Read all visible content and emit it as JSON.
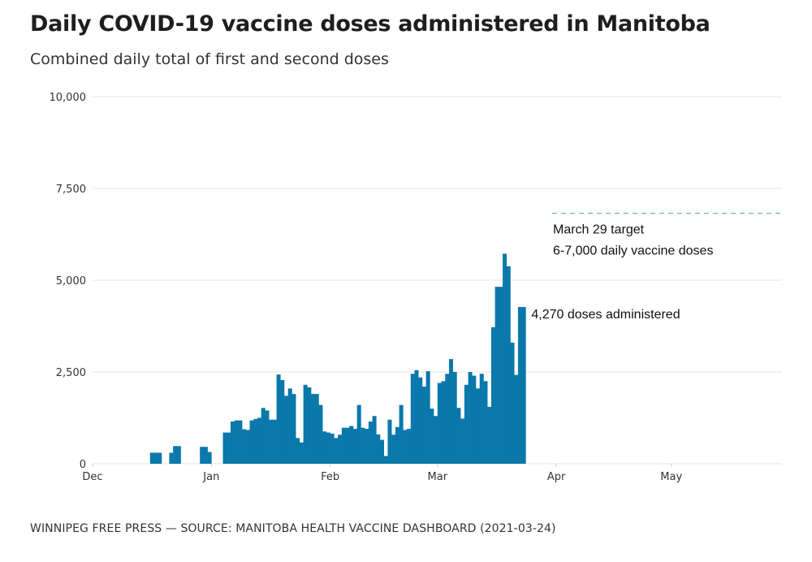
{
  "header": {
    "title": "Daily COVID-19 vaccine doses administered in Manitoba",
    "subtitle": "Combined daily total of first and second doses"
  },
  "footer": {
    "source": "WINNIPEG FREE PRESS — SOURCE: MANITOBA HEALTH VACCINE DASHBOARD (2021-03-24)"
  },
  "colors": {
    "bar": "#0a78aa",
    "grid": "#e6e6e6",
    "target_line": "#6fb3d2"
  },
  "chart_data": {
    "type": "bar",
    "title": "Daily COVID-19 vaccine doses administered in Manitoba",
    "subtitle": "Combined daily total of first and second doses",
    "xlabel": "",
    "ylabel": "",
    "ylim": [
      0,
      10000
    ],
    "xlim": [
      "2020-12-01",
      "2021-05-31"
    ],
    "grid": true,
    "y_ticks": [
      {
        "value": 0,
        "label": "0"
      },
      {
        "value": 2500,
        "label": "2,500"
      },
      {
        "value": 5000,
        "label": "5,000"
      },
      {
        "value": 7500,
        "label": "7,500"
      },
      {
        "value": 10000,
        "label": "10,000"
      }
    ],
    "x_ticks": [
      {
        "date": "2020-12-01",
        "label": "Dec"
      },
      {
        "date": "2021-01-01",
        "label": "Jan"
      },
      {
        "date": "2021-02-01",
        "label": "Feb"
      },
      {
        "date": "2021-03-01",
        "label": "Mar"
      },
      {
        "date": "2021-04-01",
        "label": "Apr"
      },
      {
        "date": "2021-05-01",
        "label": "May"
      }
    ],
    "start_date": "2020-12-16",
    "values": [
      300,
      300,
      300,
      0,
      0,
      300,
      480,
      480,
      0,
      0,
      0,
      0,
      0,
      460,
      460,
      320,
      0,
      0,
      0,
      850,
      850,
      1150,
      1180,
      1180,
      940,
      920,
      1180,
      1220,
      1250,
      1520,
      1450,
      1200,
      1200,
      2430,
      2280,
      1850,
      2050,
      1900,
      700,
      580,
      2150,
      2080,
      1900,
      1900,
      1600,
      880,
      850,
      820,
      700,
      790,
      980,
      980,
      1030,
      950,
      1600,
      980,
      950,
      1150,
      1300,
      800,
      650,
      210,
      1200,
      790,
      1000,
      1600,
      920,
      950,
      2450,
      2550,
      2350,
      2100,
      2520,
      1500,
      1300,
      2200,
      2250,
      2450,
      2850,
      2500,
      1520,
      1230,
      2150,
      2500,
      2400,
      2050,
      2450,
      2250,
      1550,
      3720,
      4820,
      4820,
      5720,
      5380,
      3300,
      2420,
      4270,
      4270
    ],
    "annotations": [
      {
        "label": "4,270 doses administered",
        "date": "2021-03-23",
        "value": 4270
      },
      {
        "type": "reference_line",
        "value": 7000,
        "start": "2021-03-29",
        "style": "dashed",
        "label_line1": "March 29 target",
        "label_line2": "6-7,000 daily vaccine doses"
      }
    ]
  }
}
